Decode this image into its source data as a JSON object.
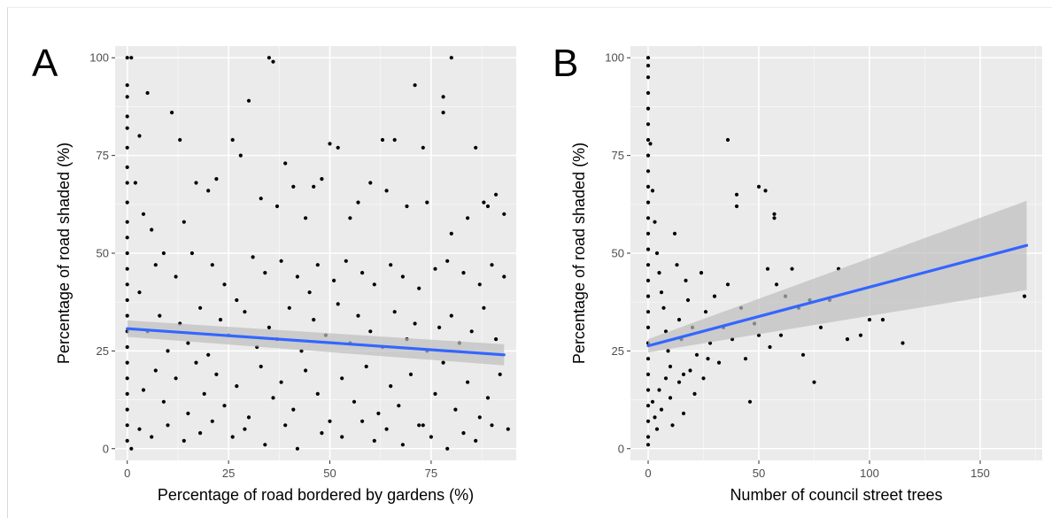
{
  "figure": {
    "panels": [
      {
        "letter": "A",
        "xlabel": "Percentage of road bordered by gardens (%)",
        "ylabel": "Percentage of road shaded (%)"
      },
      {
        "letter": "B",
        "xlabel": "Number of council street trees",
        "ylabel": "Percentage of road shaded (%)"
      }
    ]
  },
  "chart_data": [
    {
      "type": "scatter",
      "panel_label": "A",
      "xlabel": "Percentage of road bordered by gardens (%)",
      "ylabel": "Percentage of road shaded (%)",
      "xlim": [
        -3,
        96
      ],
      "ylim": [
        -3,
        103
      ],
      "x_ticks": [
        0,
        25,
        50,
        75
      ],
      "y_ticks": [
        0,
        25,
        50,
        75,
        100
      ],
      "grid": true,
      "background": "#ebebeb",
      "point_color": "#000000",
      "trend_line": {
        "method": "linear fit",
        "color": "#3366ff",
        "x": [
          0,
          93
        ],
        "y": [
          30.7,
          24.0
        ],
        "ci_color": "#bdbdbd",
        "ci_lower": [
          28.6,
          21.3
        ],
        "ci_upper": [
          32.8,
          26.7
        ]
      },
      "points": [
        [
          0,
          100
        ],
        [
          1,
          100
        ],
        [
          0,
          93
        ],
        [
          0,
          90
        ],
        [
          0,
          85
        ],
        [
          0,
          82
        ],
        [
          0,
          77
        ],
        [
          0,
          72
        ],
        [
          0,
          68
        ],
        [
          0,
          63
        ],
        [
          0,
          58
        ],
        [
          0,
          54
        ],
        [
          0,
          50
        ],
        [
          0,
          46
        ],
        [
          0,
          42
        ],
        [
          0,
          38
        ],
        [
          0,
          34
        ],
        [
          0,
          30
        ],
        [
          0,
          26
        ],
        [
          0,
          22
        ],
        [
          0,
          18
        ],
        [
          0,
          14
        ],
        [
          0,
          10
        ],
        [
          0,
          6
        ],
        [
          0,
          2
        ],
        [
          1,
          0
        ],
        [
          3,
          80
        ],
        [
          5,
          91
        ],
        [
          11,
          86
        ],
        [
          13,
          79
        ],
        [
          20,
          66
        ],
        [
          26,
          79
        ],
        [
          30,
          89
        ],
        [
          35,
          100
        ],
        [
          36,
          99
        ],
        [
          39,
          73
        ],
        [
          46,
          67
        ],
        [
          50,
          78
        ],
        [
          52,
          77
        ],
        [
          57,
          63
        ],
        [
          63,
          79
        ],
        [
          66,
          79
        ],
        [
          71,
          93
        ],
        [
          73,
          77
        ],
        [
          78,
          90
        ],
        [
          78,
          86
        ],
        [
          80,
          100
        ],
        [
          86,
          77
        ],
        [
          88,
          63
        ],
        [
          91,
          65
        ],
        [
          2,
          68
        ],
        [
          4,
          60
        ],
        [
          6,
          56
        ],
        [
          9,
          50
        ],
        [
          14,
          58
        ],
        [
          17,
          68
        ],
        [
          22,
          69
        ],
        [
          28,
          75
        ],
        [
          33,
          64
        ],
        [
          37,
          62
        ],
        [
          41,
          67
        ],
        [
          44,
          59
        ],
        [
          48,
          69
        ],
        [
          55,
          59
        ],
        [
          60,
          68
        ],
        [
          64,
          66
        ],
        [
          69,
          62
        ],
        [
          74,
          63
        ],
        [
          80,
          55
        ],
        [
          84,
          59
        ],
        [
          89,
          62
        ],
        [
          93,
          60
        ],
        [
          3,
          40
        ],
        [
          7,
          47
        ],
        [
          12,
          44
        ],
        [
          16,
          50
        ],
        [
          21,
          47
        ],
        [
          24,
          42
        ],
        [
          27,
          38
        ],
        [
          31,
          49
        ],
        [
          34,
          45
        ],
        [
          38,
          48
        ],
        [
          42,
          44
        ],
        [
          45,
          40
        ],
        [
          47,
          47
        ],
        [
          51,
          43
        ],
        [
          54,
          48
        ],
        [
          58,
          45
        ],
        [
          61,
          42
        ],
        [
          65,
          47
        ],
        [
          68,
          44
        ],
        [
          72,
          41
        ],
        [
          76,
          46
        ],
        [
          79,
          48
        ],
        [
          83,
          45
        ],
        [
          87,
          42
        ],
        [
          90,
          47
        ],
        [
          93,
          44
        ],
        [
          5,
          30
        ],
        [
          8,
          34
        ],
        [
          10,
          25
        ],
        [
          13,
          32
        ],
        [
          15,
          27
        ],
        [
          18,
          36
        ],
        [
          20,
          24
        ],
        [
          23,
          33
        ],
        [
          25,
          29
        ],
        [
          29,
          35
        ],
        [
          32,
          26
        ],
        [
          35,
          31
        ],
        [
          37,
          28
        ],
        [
          40,
          36
        ],
        [
          43,
          25
        ],
        [
          46,
          33
        ],
        [
          49,
          29
        ],
        [
          52,
          37
        ],
        [
          55,
          27
        ],
        [
          57,
          34
        ],
        [
          60,
          30
        ],
        [
          63,
          26
        ],
        [
          66,
          35
        ],
        [
          69,
          28
        ],
        [
          71,
          32
        ],
        [
          74,
          25
        ],
        [
          77,
          31
        ],
        [
          80,
          34
        ],
        [
          82,
          27
        ],
        [
          85,
          30
        ],
        [
          88,
          36
        ],
        [
          91,
          28
        ],
        [
          4,
          15
        ],
        [
          7,
          20
        ],
        [
          9,
          12
        ],
        [
          12,
          18
        ],
        [
          15,
          9
        ],
        [
          17,
          22
        ],
        [
          19,
          14
        ],
        [
          22,
          19
        ],
        [
          24,
          11
        ],
        [
          27,
          16
        ],
        [
          30,
          8
        ],
        [
          33,
          21
        ],
        [
          36,
          13
        ],
        [
          38,
          17
        ],
        [
          41,
          10
        ],
        [
          44,
          20
        ],
        [
          47,
          14
        ],
        [
          50,
          7
        ],
        [
          53,
          18
        ],
        [
          56,
          12
        ],
        [
          59,
          21
        ],
        [
          62,
          9
        ],
        [
          65,
          16
        ],
        [
          67,
          11
        ],
        [
          70,
          19
        ],
        [
          73,
          6
        ],
        [
          76,
          14
        ],
        [
          78,
          22
        ],
        [
          81,
          10
        ],
        [
          84,
          17
        ],
        [
          87,
          8
        ],
        [
          89,
          13
        ],
        [
          92,
          19
        ],
        [
          3,
          5
        ],
        [
          6,
          3
        ],
        [
          10,
          6
        ],
        [
          14,
          2
        ],
        [
          18,
          4
        ],
        [
          21,
          7
        ],
        [
          26,
          3
        ],
        [
          29,
          5
        ],
        [
          34,
          1
        ],
        [
          39,
          6
        ],
        [
          42,
          0
        ],
        [
          48,
          4
        ],
        [
          53,
          3
        ],
        [
          58,
          7
        ],
        [
          61,
          2
        ],
        [
          64,
          5
        ],
        [
          68,
          1
        ],
        [
          72,
          6
        ],
        [
          75,
          3
        ],
        [
          79,
          0
        ],
        [
          83,
          4
        ],
        [
          86,
          2
        ],
        [
          90,
          6
        ],
        [
          94,
          5
        ]
      ]
    },
    {
      "type": "scatter",
      "panel_label": "B",
      "xlabel": "Number of council street trees",
      "ylabel": "Percentage of road shaded (%)",
      "xlim": [
        -8,
        178
      ],
      "ylim": [
        -3,
        103
      ],
      "x_ticks": [
        0,
        50,
        100,
        150
      ],
      "y_ticks": [
        0,
        25,
        50,
        75,
        100
      ],
      "grid": true,
      "background": "#ebebeb",
      "point_color": "#000000",
      "trend_line": {
        "method": "linear fit",
        "color": "#3366ff",
        "x": [
          0,
          171
        ],
        "y": [
          26.3,
          52.0
        ],
        "ci_color": "#bdbdbd",
        "ci_lower": [
          24.6,
          40.6
        ],
        "ci_upper": [
          28.0,
          63.4
        ]
      },
      "points": [
        [
          0,
          100
        ],
        [
          0,
          98
        ],
        [
          0,
          95
        ],
        [
          0,
          91
        ],
        [
          0,
          87
        ],
        [
          0,
          83
        ],
        [
          0,
          79
        ],
        [
          0,
          75
        ],
        [
          0,
          71
        ],
        [
          0,
          67
        ],
        [
          0,
          63
        ],
        [
          0,
          59
        ],
        [
          0,
          55
        ],
        [
          0,
          51
        ],
        [
          0,
          47
        ],
        [
          0,
          43
        ],
        [
          0,
          39
        ],
        [
          0,
          35
        ],
        [
          0,
          31
        ],
        [
          0,
          27
        ],
        [
          0,
          23
        ],
        [
          0,
          19
        ],
        [
          0,
          15
        ],
        [
          0,
          11
        ],
        [
          0,
          7
        ],
        [
          0,
          3
        ],
        [
          0,
          1
        ],
        [
          1,
          78
        ],
        [
          2,
          66
        ],
        [
          3,
          58
        ],
        [
          4,
          50
        ],
        [
          5,
          45
        ],
        [
          6,
          40
        ],
        [
          7,
          36
        ],
        [
          8,
          30
        ],
        [
          9,
          25
        ],
        [
          10,
          21
        ],
        [
          12,
          55
        ],
        [
          13,
          47
        ],
        [
          14,
          33
        ],
        [
          15,
          28
        ],
        [
          16,
          19
        ],
        [
          17,
          43
        ],
        [
          18,
          38
        ],
        [
          20,
          31
        ],
        [
          22,
          24
        ],
        [
          24,
          45
        ],
        [
          26,
          35
        ],
        [
          28,
          27
        ],
        [
          30,
          39
        ],
        [
          32,
          22
        ],
        [
          34,
          31
        ],
        [
          36,
          79
        ],
        [
          36,
          42
        ],
        [
          38,
          28
        ],
        [
          40,
          65
        ],
        [
          40,
          62
        ],
        [
          42,
          36
        ],
        [
          44,
          23
        ],
        [
          46,
          12
        ],
        [
          48,
          32
        ],
        [
          50,
          67
        ],
        [
          50,
          29
        ],
        [
          53,
          66
        ],
        [
          54,
          46
        ],
        [
          55,
          26
        ],
        [
          57,
          60
        ],
        [
          57,
          59
        ],
        [
          58,
          42
        ],
        [
          60,
          29
        ],
        [
          62,
          39
        ],
        [
          65,
          46
        ],
        [
          68,
          36
        ],
        [
          70,
          24
        ],
        [
          73,
          38
        ],
        [
          75,
          17
        ],
        [
          78,
          31
        ],
        [
          82,
          38
        ],
        [
          86,
          46
        ],
        [
          90,
          28
        ],
        [
          96,
          29
        ],
        [
          100,
          33
        ],
        [
          106,
          33
        ],
        [
          115,
          27
        ],
        [
          170,
          39
        ],
        [
          2,
          12
        ],
        [
          3,
          8
        ],
        [
          4,
          5
        ],
        [
          5,
          15
        ],
        [
          6,
          10
        ],
        [
          8,
          18
        ],
        [
          10,
          13
        ],
        [
          11,
          6
        ],
        [
          14,
          17
        ],
        [
          16,
          9
        ],
        [
          19,
          20
        ],
        [
          21,
          14
        ],
        [
          25,
          18
        ],
        [
          27,
          23
        ]
      ]
    }
  ]
}
